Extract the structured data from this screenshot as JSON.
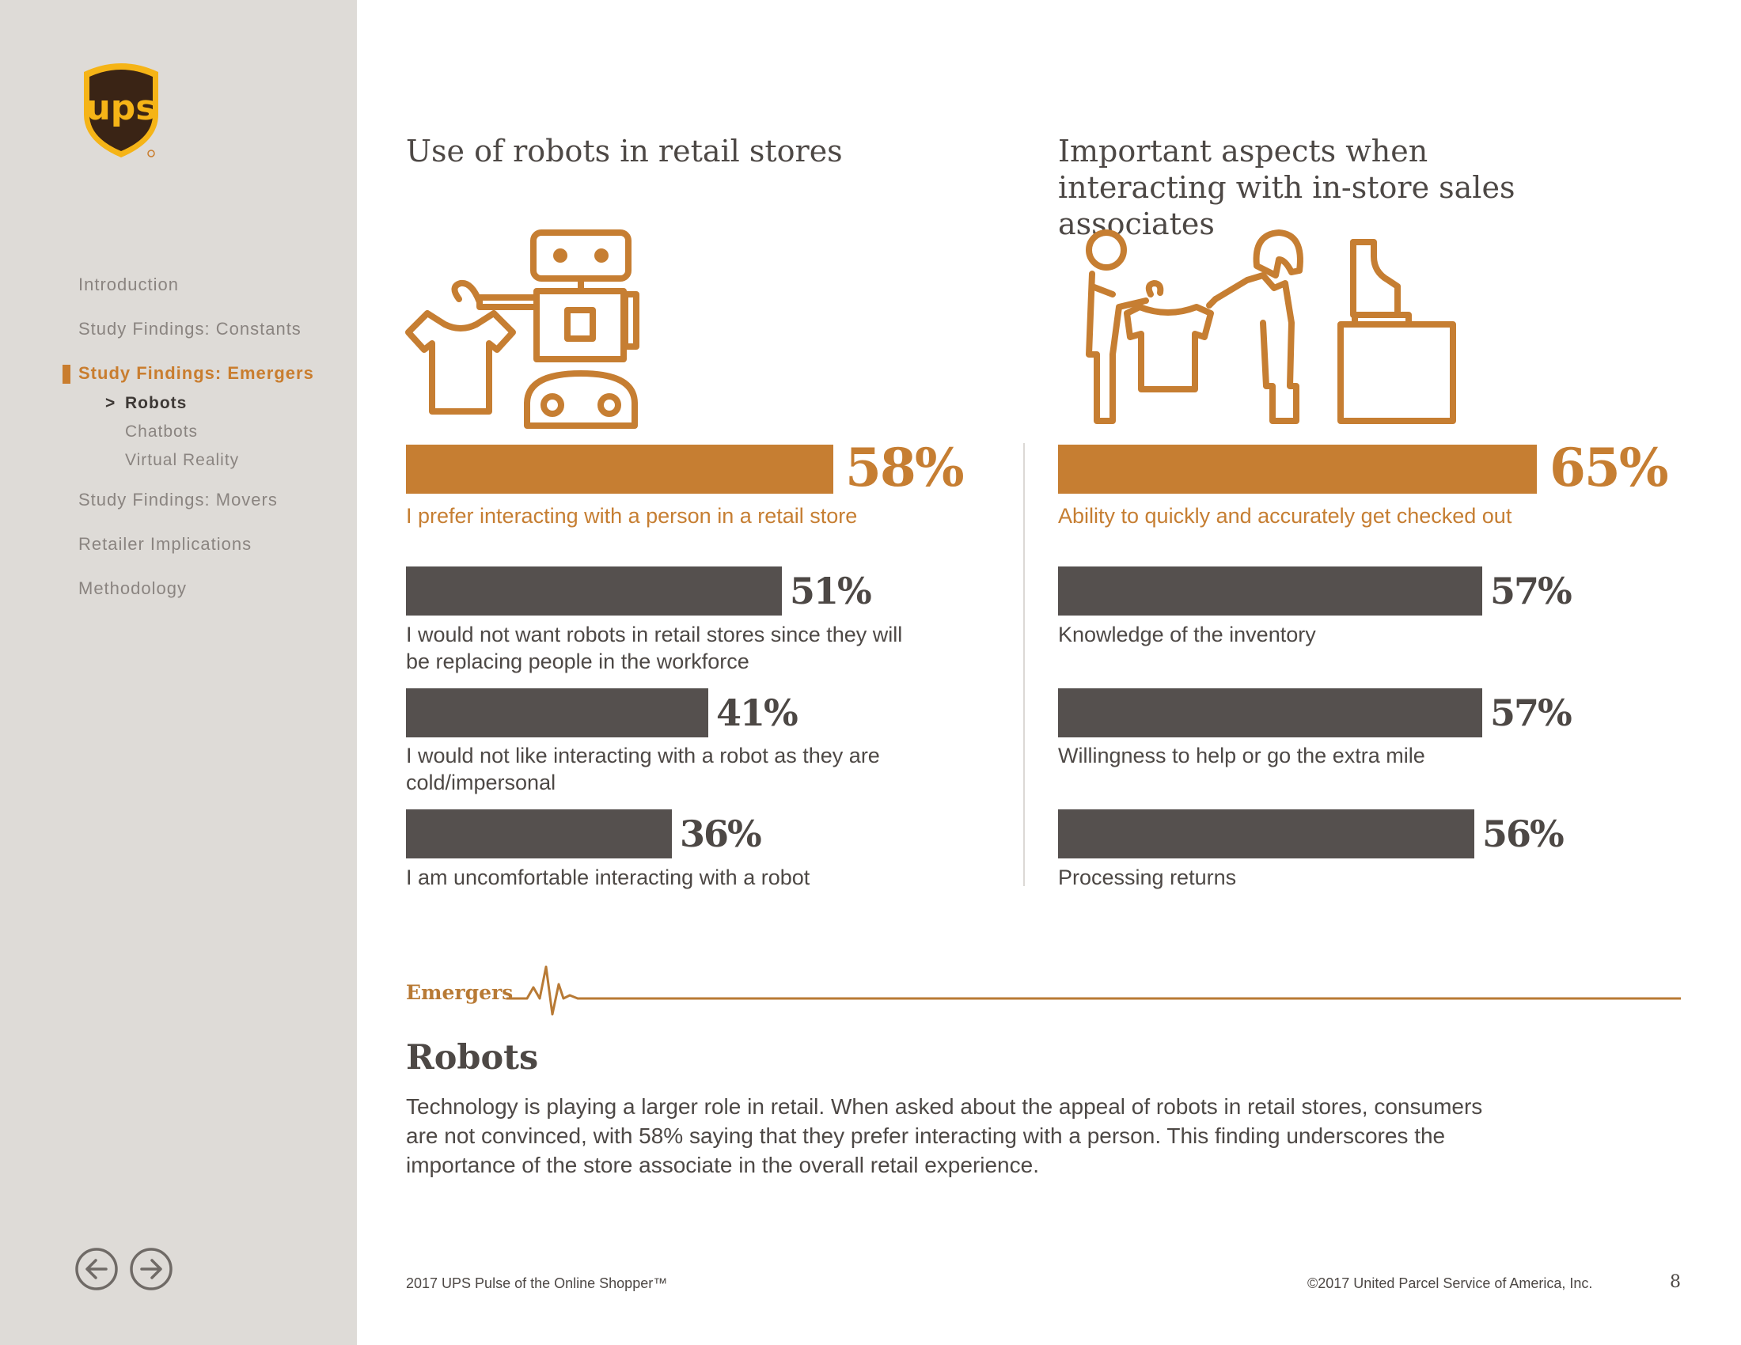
{
  "brand": {
    "logo_text": "ups",
    "accent": "#c67e32",
    "dark_bar": "#55504e",
    "sidebar_bg": "#dedbd7"
  },
  "sidebar": {
    "items": [
      {
        "label": "Introduction"
      },
      {
        "label": "Study Findings: Constants"
      },
      {
        "label": "Study Findings: Emergers",
        "active": true,
        "subitems": [
          {
            "label": "Robots",
            "current": true,
            "marker": ">"
          },
          {
            "label": "Chatbots"
          },
          {
            "label": "Virtual Reality"
          }
        ]
      },
      {
        "label": "Study Findings: Movers"
      },
      {
        "label": "Retailer Implications"
      },
      {
        "label": "Methodology"
      }
    ],
    "prev_icon": "arrow-left-circle-icon",
    "next_icon": "arrow-right-circle-icon"
  },
  "left_panel": {
    "title": "Use of robots in retail stores",
    "icon": "robot-holding-shirt-icon",
    "bars": [
      {
        "value": 58,
        "pct": "58%",
        "label": "I prefer interacting with a person in a retail store",
        "highlight": true
      },
      {
        "value": 51,
        "pct": "51%",
        "label": "I would not want robots in retail stores since they will be replacing people in the workforce"
      },
      {
        "value": 41,
        "pct": "41%",
        "label": "I would not like interacting with a robot as they are cold/impersonal"
      },
      {
        "value": 36,
        "pct": "36%",
        "label": "I am uncomfortable interacting with a robot"
      }
    ]
  },
  "right_panel": {
    "title": "Important aspects when interacting with in-store sales associates",
    "icon": "sales-associates-and-register-icon",
    "bars": [
      {
        "value": 65,
        "pct": "65%",
        "label": "Ability to quickly and accurately get checked out",
        "highlight": true
      },
      {
        "value": 57,
        "pct": "57%",
        "label": "Knowledge of the inventory"
      },
      {
        "value": 57,
        "pct": "57%",
        "label": "Willingness to help or go the extra mile"
      },
      {
        "value": 56,
        "pct": "56%",
        "label": "Processing returns"
      }
    ]
  },
  "section": {
    "label": "Emergers",
    "title": "Robots",
    "body": "Technology is playing a larger role in retail. When asked about the appeal of robots in retail stores, consumers are not convinced, with 58% saying that they prefer interacting with a person. This finding underscores the importance of the store associate in the overall retail experience."
  },
  "footer": {
    "left": "2017 UPS Pulse of the Online Shopper™",
    "right": "©2017 United Parcel Service of America, Inc.",
    "page": "8"
  }
}
